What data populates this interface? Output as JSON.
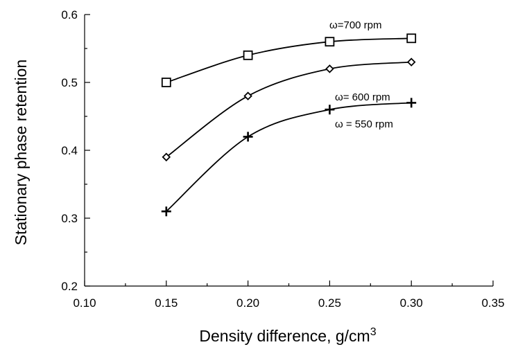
{
  "chart_data": {
    "type": "line",
    "title": "",
    "xlabel": "Density difference, g/cm",
    "xlabel_sup": "3",
    "ylabel": "Stationary phase retention",
    "xlim": [
      0.1,
      0.35
    ],
    "ylim": [
      0.2,
      0.6
    ],
    "xticks": [
      "0.10",
      "0.15",
      "0.20",
      "0.25",
      "0.30",
      "0.35"
    ],
    "yticks": [
      "0.2",
      "0.3",
      "0.4",
      "0.5",
      "0.6"
    ],
    "grid": false,
    "series": [
      {
        "name": "ω=700 rpm",
        "marker": "square",
        "x": [
          0.15,
          0.2,
          0.25,
          0.3
        ],
        "y": [
          0.5,
          0.54,
          0.56,
          0.565
        ]
      },
      {
        "name": "ω= 600 rpm",
        "marker": "diamond",
        "x": [
          0.15,
          0.2,
          0.25,
          0.3
        ],
        "y": [
          0.39,
          0.48,
          0.52,
          0.53
        ]
      },
      {
        "name": "ω = 550 rpm",
        "marker": "plus",
        "x": [
          0.15,
          0.2,
          0.25,
          0.3
        ],
        "y": [
          0.31,
          0.42,
          0.46,
          0.47
        ]
      }
    ]
  }
}
